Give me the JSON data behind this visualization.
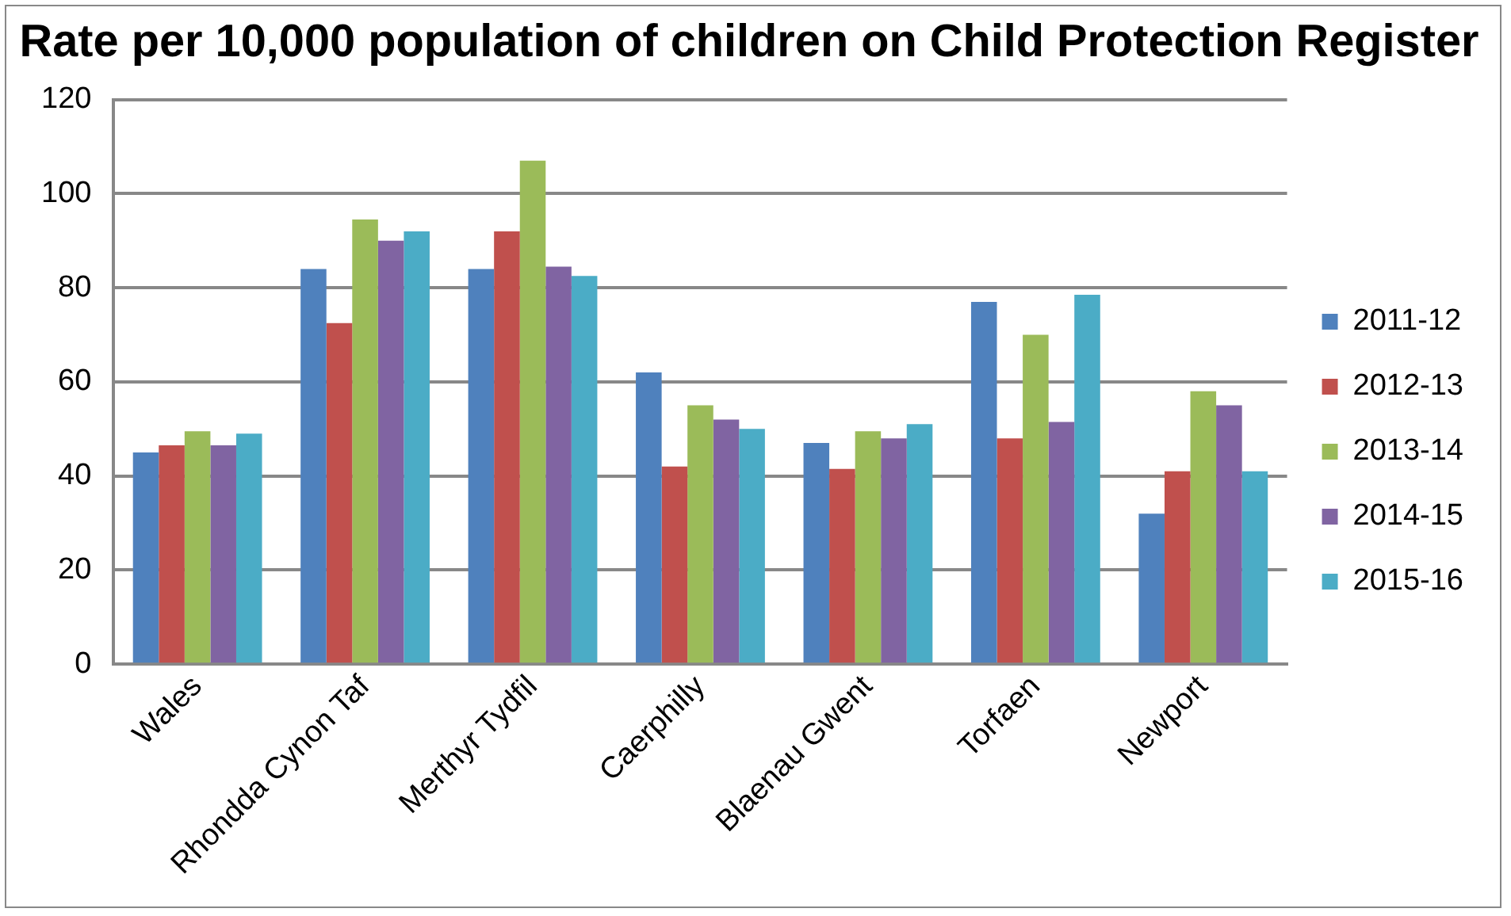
{
  "chart_data": {
    "type": "bar",
    "title": "Rate per 10,000 population of children on Child Protection Register",
    "categories": [
      "Wales",
      "Rhondda Cynon Taf",
      "Merthyr Tydfil",
      "Caerphilly",
      "Blaenau Gwent",
      "Torfaen",
      "Newport"
    ],
    "series": [
      {
        "name": "2011-12",
        "color": "#4f81bd",
        "values": [
          45,
          84,
          84,
          62,
          47,
          77,
          32
        ]
      },
      {
        "name": "2012-13",
        "color": "#c0504d",
        "values": [
          46.5,
          72.5,
          92,
          42,
          41.5,
          48,
          41
        ]
      },
      {
        "name": "2013-14",
        "color": "#9bbb59",
        "values": [
          49.5,
          94.5,
          107,
          55,
          49.5,
          70,
          58
        ]
      },
      {
        "name": "2014-15",
        "color": "#8064a2",
        "values": [
          46.5,
          90,
          84.5,
          52,
          48,
          51.5,
          55
        ]
      },
      {
        "name": "2015-16",
        "color": "#4bacc6",
        "values": [
          49,
          92,
          82.5,
          50,
          51,
          78.5,
          41
        ]
      }
    ],
    "ylim": [
      0,
      120
    ],
    "yticks": [
      0,
      20,
      40,
      60,
      80,
      100,
      120
    ],
    "grid": "y",
    "legend": "right"
  }
}
